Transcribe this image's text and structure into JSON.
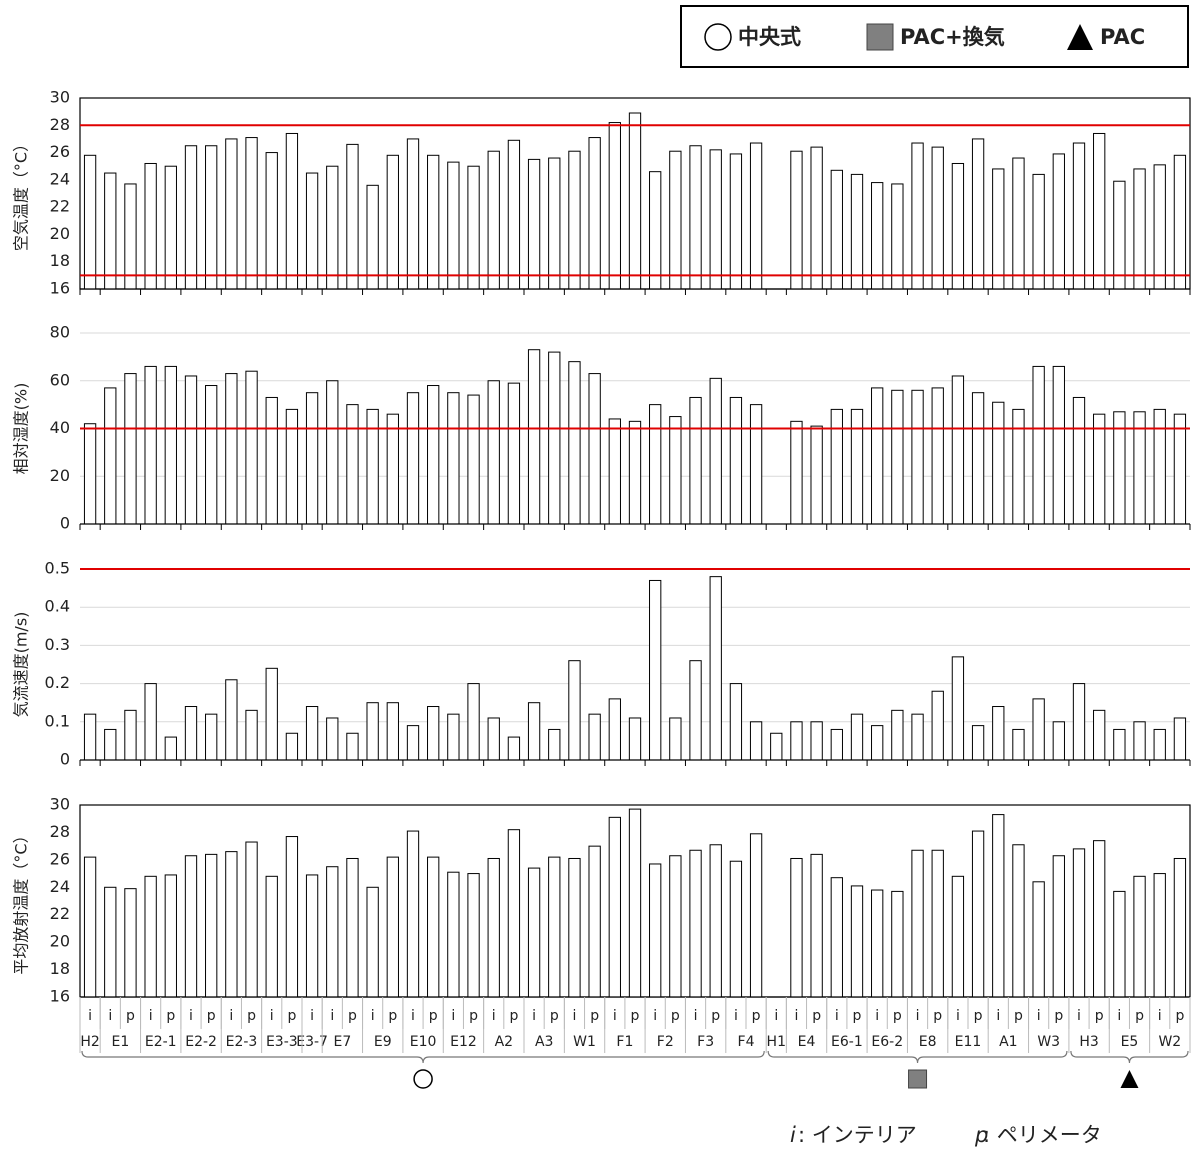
{
  "x_axis": {
    "zones": [
      {
        "name": "中央式",
        "marker": "circle",
        "color": "#ffffff",
        "groups": [
          {
            "label": "H2",
            "sub": [
              "i"
            ]
          },
          {
            "label": "E1",
            "sub": [
              "i",
              "p"
            ]
          },
          {
            "label": "E2-1",
            "sub": [
              "i",
              "p"
            ]
          },
          {
            "label": "E2-2",
            "sub": [
              "i",
              "p"
            ]
          },
          {
            "label": "E2-3",
            "sub": [
              "i",
              "p"
            ]
          },
          {
            "label": "E3-3",
            "sub": [
              "i",
              "p"
            ]
          },
          {
            "label": "E3-7",
            "sub": [
              "i"
            ]
          },
          {
            "label": "E7",
            "sub": [
              "i",
              "p"
            ]
          },
          {
            "label": "E9",
            "sub": [
              "i",
              "p"
            ]
          },
          {
            "label": "E10",
            "sub": [
              "i",
              "p"
            ]
          },
          {
            "label": "E12",
            "sub": [
              "i",
              "p"
            ]
          },
          {
            "label": "A2",
            "sub": [
              "i",
              "p"
            ]
          },
          {
            "label": "A3",
            "sub": [
              "i",
              "p"
            ]
          },
          {
            "label": "W1",
            "sub": [
              "i",
              "p"
            ]
          },
          {
            "label": "F1",
            "sub": [
              "i",
              "p"
            ]
          },
          {
            "label": "F2",
            "sub": [
              "i",
              "p"
            ]
          },
          {
            "label": "F3",
            "sub": [
              "i",
              "p"
            ]
          },
          {
            "label": "F4",
            "sub": [
              "i",
              "p"
            ]
          }
        ]
      },
      {
        "name": "PAC+換気",
        "marker": "square",
        "color": "#808080",
        "groups": [
          {
            "label": "H1",
            "sub": [
              "i"
            ]
          },
          {
            "label": "E4",
            "sub": [
              "i",
              "p"
            ]
          },
          {
            "label": "E6-1",
            "sub": [
              "i",
              "p"
            ]
          },
          {
            "label": "E6-2",
            "sub": [
              "i",
              "p"
            ]
          },
          {
            "label": "E8",
            "sub": [
              "i",
              "p"
            ]
          },
          {
            "label": "E11",
            "sub": [
              "i",
              "p"
            ]
          },
          {
            "label": "A1",
            "sub": [
              "i",
              "p"
            ]
          },
          {
            "label": "W3",
            "sub": [
              "i",
              "p"
            ]
          }
        ]
      },
      {
        "name": "PAC",
        "marker": "triangle",
        "color": "#000000",
        "groups": [
          {
            "label": "H3",
            "sub": [
              "i",
              "p"
            ]
          },
          {
            "label": "E5",
            "sub": [
              "i",
              "p"
            ]
          },
          {
            "label": "W2",
            "sub": [
              "i",
              "p"
            ]
          }
        ]
      }
    ]
  },
  "footnote": [
    {
      "key": "i",
      "text": ": インテリア"
    },
    {
      "key": "p",
      "text": ": ペリメータ"
    }
  ],
  "chart_data": [
    {
      "type": "bar",
      "ylabel": "空気温度（°C）",
      "ylim": [
        16,
        30
      ],
      "yticks": [
        16,
        18,
        20,
        22,
        24,
        26,
        28,
        30
      ],
      "frame": true,
      "grid": false,
      "color": "#ffffff",
      "hlines": [
        {
          "value": 28,
          "color": "#e00000"
        },
        {
          "value": 17,
          "color": "#e00000"
        }
      ],
      "values": [
        25.8,
        24.5,
        23.7,
        25.2,
        25.0,
        26.5,
        26.5,
        27.0,
        27.1,
        26.0,
        27.4,
        24.5,
        25.0,
        26.6,
        23.6,
        25.8,
        27.0,
        25.8,
        25.3,
        25.0,
        26.1,
        26.9,
        25.5,
        25.6,
        26.1,
        27.1,
        28.2,
        28.9,
        24.6,
        26.1,
        26.5,
        26.2,
        25.9,
        26.7,
        null,
        26.1,
        26.4,
        24.7,
        24.4,
        23.8,
        23.7,
        26.7,
        26.4,
        25.2,
        27.0,
        24.8,
        25.6,
        24.4,
        25.9,
        26.7,
        27.4,
        23.9,
        24.8,
        25.1,
        25.8
      ]
    },
    {
      "type": "bar",
      "ylabel": "相対湿度(%)",
      "ylim": [
        0,
        80
      ],
      "yticks": [
        0,
        20,
        40,
        60,
        80
      ],
      "frame": false,
      "grid": true,
      "color": "#ffffff",
      "hlines": [
        {
          "value": 40,
          "color": "#e00000"
        }
      ],
      "values": [
        42,
        57,
        63,
        66,
        66,
        62,
        58,
        63,
        64,
        53,
        48,
        55,
        60,
        50,
        48,
        46,
        55,
        58,
        55,
        54,
        60,
        59,
        73,
        72,
        68,
        63,
        44,
        43,
        50,
        45,
        53,
        61,
        53,
        50,
        null,
        43,
        41,
        48,
        48,
        57,
        56,
        56,
        57,
        62,
        55,
        51,
        48,
        66,
        66,
        53,
        46,
        47,
        47,
        48,
        46
      ]
    },
    {
      "type": "bar",
      "ylabel": "気流速度(m/s)",
      "ylim": [
        0,
        0.5
      ],
      "yticks": [
        0,
        0.1,
        0.2,
        0.3,
        0.4,
        0.5
      ],
      "frame": false,
      "grid": true,
      "color": "#ffffff",
      "hlines": [
        {
          "value": 0.5,
          "color": "#e00000"
        }
      ],
      "values": [
        0.12,
        0.08,
        0.13,
        0.2,
        0.06,
        0.14,
        0.12,
        0.21,
        0.13,
        0.24,
        0.07,
        0.14,
        0.11,
        0.07,
        0.15,
        0.15,
        0.09,
        0.14,
        0.12,
        0.2,
        0.11,
        0.06,
        0.15,
        0.08,
        0.26,
        0.12,
        0.16,
        0.11,
        0.47,
        0.11,
        0.26,
        0.48,
        0.2,
        0.1,
        0.07,
        0.1,
        0.1,
        0.08,
        0.12,
        0.09,
        0.13,
        0.12,
        0.18,
        0.27,
        0.09,
        0.14,
        0.08,
        0.16,
        0.1,
        0.2,
        0.13,
        0.08,
        0.1,
        0.08,
        0.11
      ]
    },
    {
      "type": "bar",
      "ylabel": "平均放射温度（°C）",
      "ylim": [
        16,
        30
      ],
      "yticks": [
        16,
        18,
        20,
        22,
        24,
        26,
        28,
        30
      ],
      "frame": true,
      "grid": false,
      "color": "#ffffff",
      "hlines": [],
      "values": [
        26.2,
        24.0,
        23.9,
        24.8,
        24.9,
        26.3,
        26.4,
        26.6,
        27.3,
        24.8,
        27.7,
        24.9,
        25.5,
        26.1,
        24.0,
        26.2,
        28.1,
        26.2,
        25.1,
        25.0,
        26.1,
        28.2,
        25.4,
        26.2,
        26.1,
        27.0,
        29.1,
        29.7,
        25.7,
        26.3,
        26.7,
        27.1,
        25.9,
        27.9,
        null,
        26.1,
        26.4,
        24.7,
        24.1,
        23.8,
        23.7,
        26.7,
        26.7,
        24.8,
        28.1,
        29.3,
        27.1,
        24.4,
        26.3,
        26.8,
        27.4,
        23.7,
        24.8,
        25.0,
        26.1
      ]
    }
  ]
}
